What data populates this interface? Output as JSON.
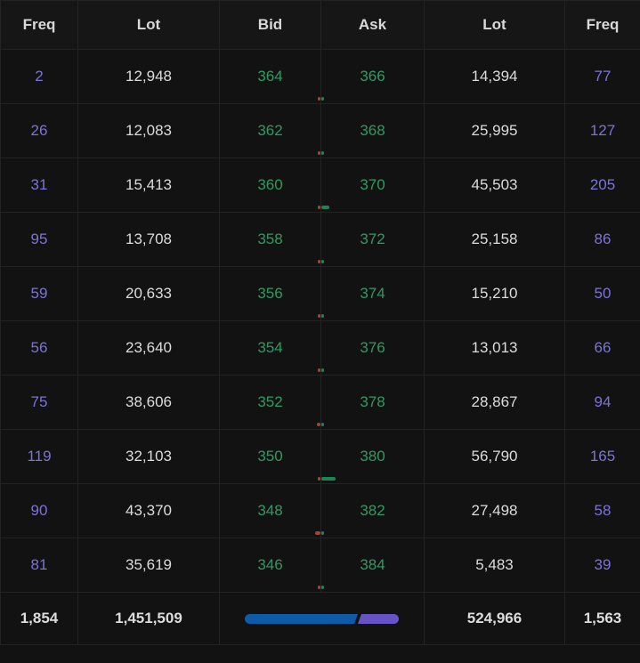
{
  "headers": {
    "bid_freq": "Freq",
    "bid_lot": "Lot",
    "bid": "Bid",
    "ask": "Ask",
    "ask_lot": "Lot",
    "ask_freq": "Freq"
  },
  "rows": [
    {
      "bid_freq": "2",
      "bid_lot": "12,948",
      "bid": "364",
      "ask": "366",
      "ask_lot": "14,394",
      "ask_freq": "77"
    },
    {
      "bid_freq": "26",
      "bid_lot": "12,083",
      "bid": "362",
      "ask": "368",
      "ask_lot": "25,995",
      "ask_freq": "127"
    },
    {
      "bid_freq": "31",
      "bid_lot": "15,413",
      "bid": "360",
      "ask": "370",
      "ask_lot": "45,503",
      "ask_freq": "205"
    },
    {
      "bid_freq": "95",
      "bid_lot": "13,708",
      "bid": "358",
      "ask": "372",
      "ask_lot": "25,158",
      "ask_freq": "86"
    },
    {
      "bid_freq": "59",
      "bid_lot": "20,633",
      "bid": "356",
      "ask": "374",
      "ask_lot": "15,210",
      "ask_freq": "50"
    },
    {
      "bid_freq": "56",
      "bid_lot": "23,640",
      "bid": "354",
      "ask": "376",
      "ask_lot": "13,013",
      "ask_freq": "66"
    },
    {
      "bid_freq": "75",
      "bid_lot": "38,606",
      "bid": "352",
      "ask": "378",
      "ask_lot": "28,867",
      "ask_freq": "94"
    },
    {
      "bid_freq": "119",
      "bid_lot": "32,103",
      "bid": "350",
      "ask": "380",
      "ask_lot": "56,790",
      "ask_freq": "165"
    },
    {
      "bid_freq": "90",
      "bid_lot": "43,370",
      "bid": "348",
      "ask": "382",
      "ask_lot": "27,498",
      "ask_freq": "58"
    },
    {
      "bid_freq": "81",
      "bid_lot": "35,619",
      "bid": "346",
      "ask": "384",
      "ask_lot": "5,483",
      "ask_freq": "39"
    }
  ],
  "totals": {
    "bid_freq": "1,854",
    "bid_lot": "1,451,509",
    "ask_lot": "524,966",
    "ask_freq": "1,563",
    "bid_share": 0.735
  },
  "colors": {
    "freq": "#7b74d8",
    "price": "#2f9a63",
    "bid_bar": "#b9503c",
    "ask_bar": "#1f9a63",
    "ratio_bid": "#0c5aa8",
    "ratio_ask": "#6753c6"
  }
}
